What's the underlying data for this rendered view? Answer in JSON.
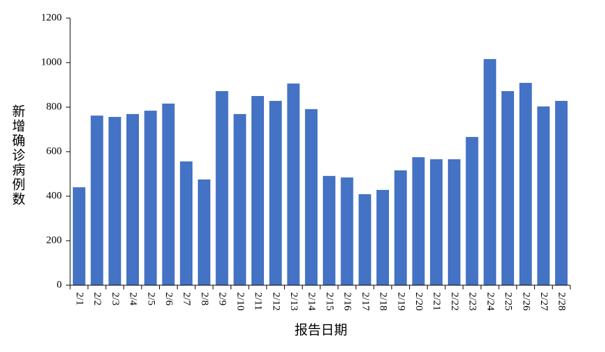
{
  "chart_data": {
    "type": "bar",
    "x_label": "报告日期",
    "y_label": "新增确诊病例数",
    "categories": [
      "2/1",
      "2/2",
      "2/3",
      "2/4",
      "2/5",
      "2/6",
      "2/7",
      "2/8",
      "2/9",
      "2/10",
      "2/11",
      "2/12",
      "2/13",
      "2/14",
      "2/15",
      "2/16",
      "2/17",
      "2/18",
      "2/19",
      "2/20",
      "2/21",
      "2/22",
      "2/23",
      "2/24",
      "2/25",
      "2/26",
      "2/27",
      "2/28"
    ],
    "values": [
      440,
      762,
      756,
      769,
      784,
      816,
      556,
      475,
      872,
      769,
      850,
      828,
      906,
      791,
      491,
      484,
      409,
      428,
      516,
      575,
      566,
      566,
      666,
      1016,
      872,
      909,
      803,
      828
    ],
    "color": "#4472c4",
    "ylim": [
      0,
      1200
    ],
    "yticks": [
      0,
      200,
      400,
      600,
      800,
      1000,
      1200
    ],
    "grid": false
  }
}
